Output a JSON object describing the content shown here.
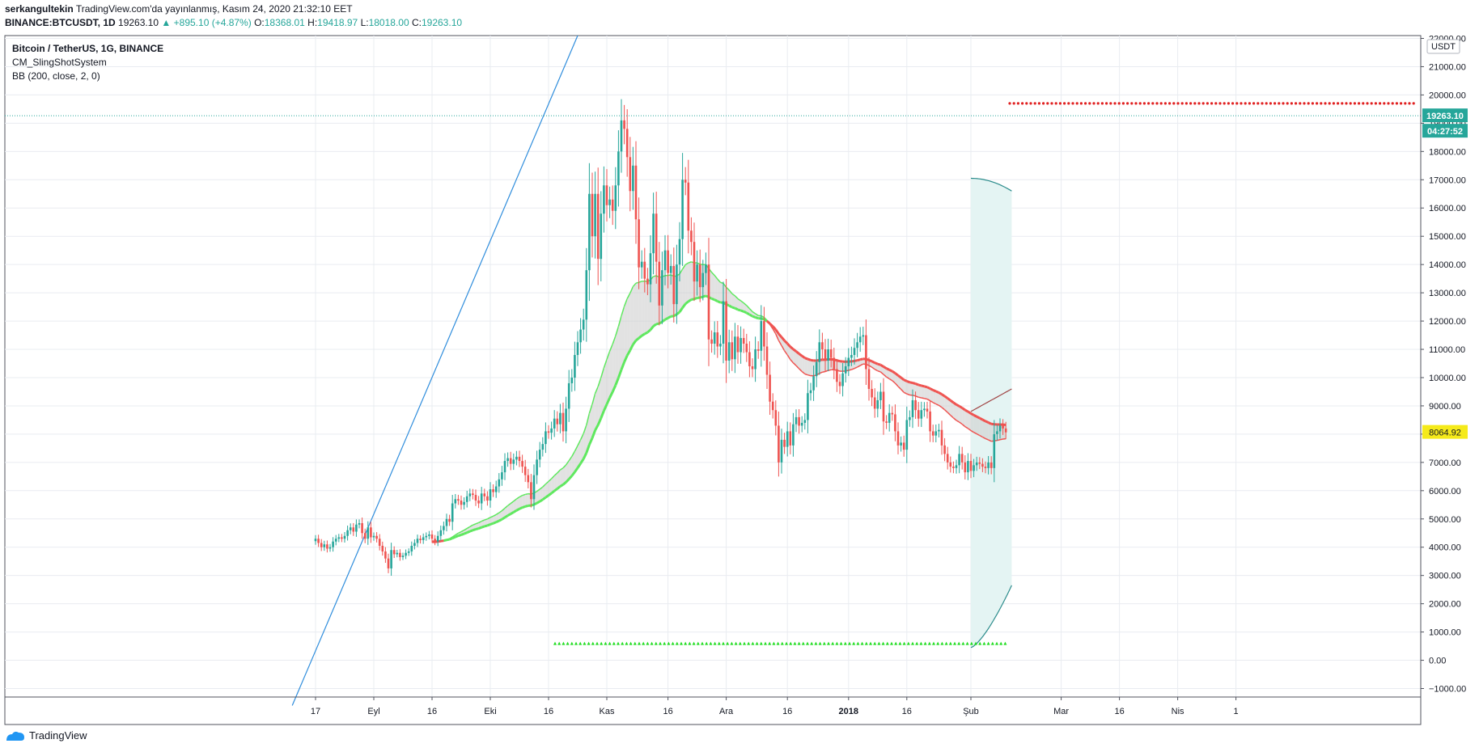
{
  "header": {
    "author": "serkangultekin",
    "published": "TradingView.com'da yayınlanmış, Kasım 24, 2020 21:32:10 EET",
    "symbol": "BINANCE:BTCUSDT, 1D",
    "price": "19263.10",
    "change": "+895.10 (+4.87%)",
    "o_label": "O:",
    "o": "18368.01",
    "h_label": "H:",
    "h": "19418.97",
    "l_label": "L:",
    "l": "18018.00",
    "c_label": "C:",
    "c": "19263.10"
  },
  "legend": {
    "title": "Bitcoin / TetherUS, 1G, BINANCE",
    "indicator1": "CM_SlingShotSystem",
    "indicator2": "BB (200, close, 2, 0)"
  },
  "footer": {
    "brand": "TradingView"
  },
  "colors": {
    "up": "#26a69a",
    "down": "#ef5350",
    "grid": "#e9ecf1",
    "trendline": "#2f8ddc",
    "ema_green": "#5ee85e",
    "ema_red": "#ef5350",
    "bb": "#2c8c8c",
    "bb_fill": "#e4f4f3",
    "label_blue": "#26a69a",
    "label_yellow": "#f5ea1a"
  },
  "chart_data": {
    "type": "candlestick",
    "axis_unit": "USDT",
    "y_ticks": [
      "22000.00",
      "21000.00",
      "20000.00",
      "19000.00",
      "18000.00",
      "17000.00",
      "16000.00",
      "15000.00",
      "14000.00",
      "13000.00",
      "12000.00",
      "11000.00",
      "10000.00",
      "9000.00",
      "8000.00",
      "7000.00",
      "6000.00",
      "5000.00",
      "4000.00",
      "3000.00",
      "2000.00",
      "1000.00",
      "0.00",
      "−1000.00"
    ],
    "x_ticks": [
      "17",
      "Eyl",
      "16",
      "Eki",
      "16",
      "Kas",
      "16",
      "Ara",
      "16",
      "2018",
      "16",
      "Şub",
      "Mar",
      "16",
      "Nis",
      "1"
    ],
    "ylim": [
      -1300,
      22100
    ],
    "current_price_label": "19263.10",
    "countdown_label": "04:27:52",
    "last_close_label": "8064.92",
    "current_price": 19263.1,
    "last_close": 8064.92,
    "red_signal_level": 19700,
    "green_signal_level": 600,
    "trendline": [
      [
        -8,
        -1600
      ],
      [
        90,
        22100
      ]
    ],
    "bb_upper_start": 17050,
    "bb_upper_end": 16600,
    "bb_basis_start": 8800,
    "bb_basis_end": 9600,
    "bb_lower_start": 450,
    "bb_lower_end": 2650,
    "closes": [
      4300,
      4150,
      4000,
      4100,
      3950,
      4000,
      4200,
      4300,
      4350,
      4300,
      4400,
      4600,
      4700,
      4550,
      4800,
      4850,
      4500,
      4300,
      4700,
      4350,
      4400,
      4300,
      4050,
      3850,
      3600,
      3250,
      3900,
      3750,
      3800,
      3650,
      3700,
      3800,
      3850,
      4050,
      4150,
      4300,
      4250,
      4350,
      4400,
      4450,
      4300,
      4200,
      4400,
      4600,
      4750,
      5000,
      4900,
      5550,
      5700,
      5650,
      5500,
      5600,
      5800,
      5900,
      5850,
      5650,
      5550,
      5900,
      5800,
      5650,
      6050,
      5950,
      6150,
      6400,
      6650,
      7050,
      7150,
      6950,
      7100,
      7200,
      7050,
      6850,
      6550,
      6300,
      5700,
      6550,
      7100,
      7450,
      7650,
      8100,
      8050,
      8200,
      8550,
      8350,
      8750,
      8100,
      8900,
      9800,
      10000,
      10800,
      11250,
      11700,
      12050,
      13800,
      16500,
      15000,
      16500,
      14200,
      15800,
      16800,
      16100,
      16300,
      15900,
      16800,
      18000,
      19100,
      18800,
      17800,
      16600,
      17500,
      15600,
      13900,
      14100,
      13500,
      13300,
      14400,
      15800,
      14100,
      12550,
      13800,
      14500,
      13700,
      13950,
      12600,
      14000,
      14900,
      17000,
      16900,
      15200,
      14800,
      13400,
      14000,
      13200,
      13700,
      14000,
      11350,
      11200,
      11600,
      11100,
      11200,
      12700,
      10600,
      11250,
      10650,
      11450,
      10900,
      11400,
      11200,
      10900,
      10400,
      10300,
      11000,
      10950,
      12000,
      11100,
      10100,
      9150,
      8850,
      8300,
      7000,
      7800,
      7550,
      8100,
      7600,
      8350,
      8600,
      8300,
      8400,
      8500,
      9450,
      9550,
      10050,
      10550,
      11250,
      11000,
      10600,
      11000,
      10700,
      10300,
      9850,
      9700,
      10150,
      10400,
      10700,
      10800,
      11050,
      11250,
      11450,
      11500,
      10300,
      9600,
      9300,
      8900,
      9200,
      9500,
      8450,
      8400,
      8750,
      8700,
      8100,
      7600,
      7700,
      7450,
      8500,
      8600,
      9200,
      8850,
      8550,
      8850,
      8900,
      8800,
      8100,
      7950,
      8100,
      8150,
      7600,
      7300,
      7000,
      6850,
      6800,
      6900,
      7300,
      7000,
      6650,
      7050,
      6700,
      6900,
      7000,
      6950,
      6850,
      6800,
      7000,
      6800,
      8000,
      8100,
      8300,
      8200,
      8064.92
    ]
  }
}
